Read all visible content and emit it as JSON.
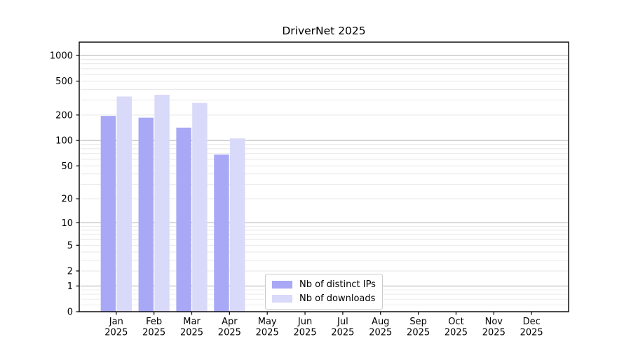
{
  "chart_data": {
    "type": "bar",
    "title": "DriverNet 2025",
    "xlabel": "",
    "ylabel": "",
    "y_scale": "log-like: position proportional to log10(value+1)",
    "ylim": [
      0,
      1432
    ],
    "grid": "horizontal, major (decades, darker) + minor (lighter)",
    "legend_position": "inside lower-center-left, vertical",
    "categories": [
      "Jan 2025",
      "Feb 2025",
      "Mar 2025",
      "Apr 2025",
      "May 2025",
      "Jun 2025",
      "Jul 2025",
      "Aug 2025",
      "Sep 2025",
      "Oct 2025",
      "Nov 2025",
      "Dec 2025"
    ],
    "months_line1": [
      "Jan",
      "Feb",
      "Mar",
      "Apr",
      "May",
      "Jun",
      "Jul",
      "Aug",
      "Sep",
      "Oct",
      "Nov",
      "Dec"
    ],
    "months_line2": "2025",
    "series": [
      {
        "name": "Nb of distinct IPs",
        "color": "#a8a8f6",
        "values": [
          195,
          186,
          142,
          68,
          0,
          0,
          0,
          0,
          0,
          0,
          0,
          0
        ]
      },
      {
        "name": "Nb of downloads",
        "color": "#d9d9f9",
        "values": [
          330,
          346,
          277,
          106,
          0,
          0,
          0,
          0,
          0,
          0,
          0,
          0
        ]
      }
    ],
    "y_tick_labels": [
      "1000",
      "500",
      "200",
      "100",
      "50",
      "20",
      "10",
      "5",
      "2",
      "1",
      "0"
    ],
    "y_tick_values": [
      1000,
      500,
      200,
      100,
      50,
      20,
      10,
      5,
      2,
      1,
      0
    ]
  },
  "colors": {
    "axis": "#000000",
    "tick_text": "#000000",
    "grid_major": "#b0b0b0",
    "grid_minor": "#e7e7e7",
    "grid_sub": "#ededed",
    "legend_border": "#cccccc",
    "legend_background": "#ffffff"
  }
}
